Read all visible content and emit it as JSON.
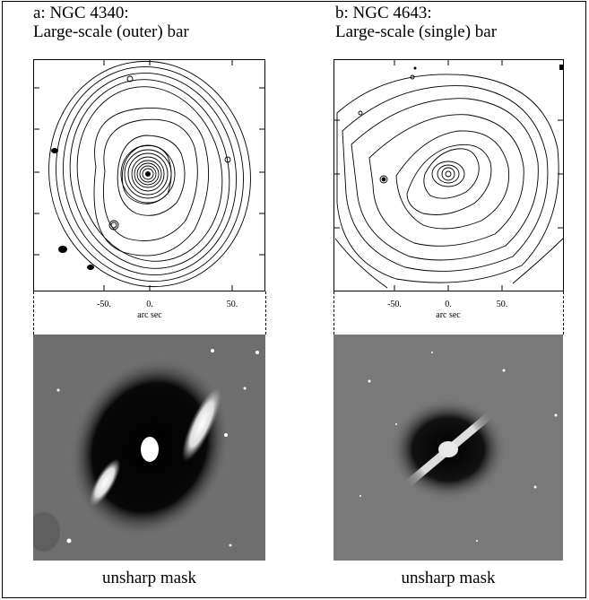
{
  "panels": [
    {
      "title_line1": "a: NGC 4340:",
      "title_line2": "Large-scale (outer) bar",
      "xlabel": "arc sec",
      "xticks": [
        "-50.",
        "0.",
        "50."
      ],
      "caption": "unsharp mask"
    },
    {
      "title_line1": "b: NGC 4643:",
      "title_line2": "Large-scale (single) bar",
      "xlabel": "arc sec",
      "xticks": [
        "-50.",
        "0.",
        "50."
      ],
      "caption": "unsharp mask"
    }
  ],
  "colors": {
    "mask_background": "#777777",
    "line": "#000000"
  }
}
